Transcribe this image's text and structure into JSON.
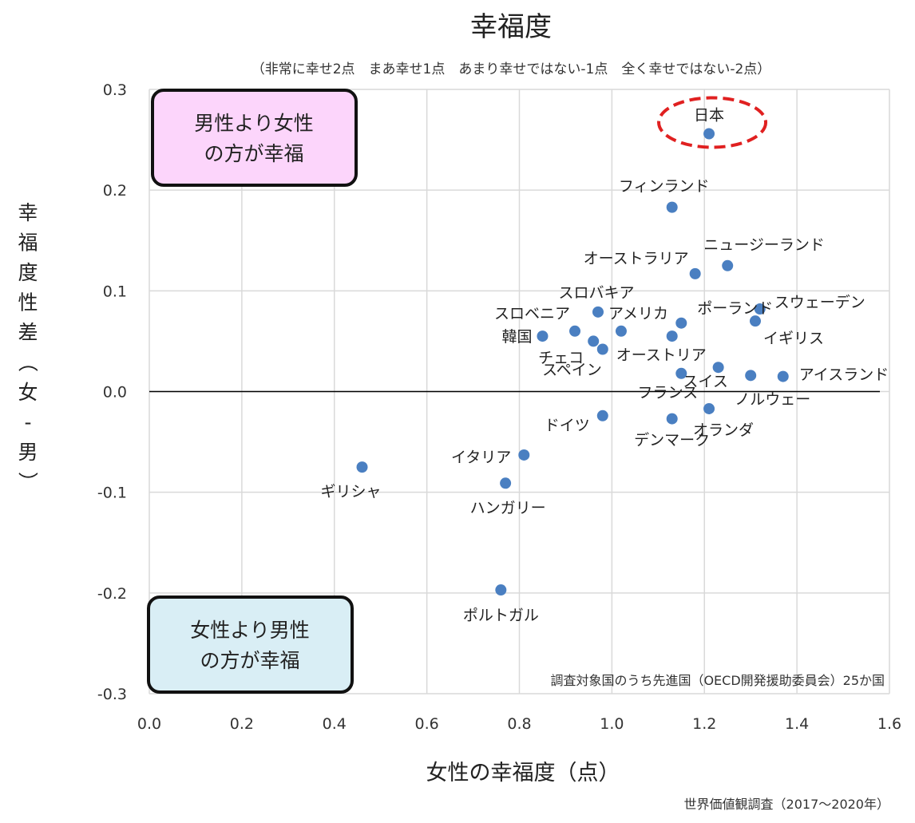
{
  "chart_data": {
    "type": "scatter",
    "title": "幸福度",
    "subtitle": "（非常に幸せ2点　まあ幸せ1点　あまり幸せではない-1点　全く幸せではない-2点）",
    "xlabel": "女性の幸福度（点）",
    "ylabel_chars": [
      "幸",
      "福",
      "度",
      "性",
      "差",
      "（",
      "女",
      "-",
      "男",
      "）"
    ],
    "xlim": [
      0.0,
      1.6
    ],
    "ylim": [
      -0.3,
      0.3
    ],
    "x_ticks": [
      "0.0",
      "0.2",
      "0.4",
      "0.6",
      "0.8",
      "1.0",
      "1.2",
      "1.4",
      "1.6"
    ],
    "y_ticks": [
      "0.3",
      "0.2",
      "0.1",
      "0.0",
      "-0.1",
      "-0.2",
      "-0.3"
    ],
    "grid": true,
    "marker_color": "#4a7fc1",
    "highlight_color": "#e02020",
    "points": [
      {
        "label": "日本",
        "x": 1.21,
        "y": 0.256,
        "highlight": true
      },
      {
        "label": "フィンランド",
        "x": 1.13,
        "y": 0.183
      },
      {
        "label": "ニュージーランド",
        "x": 1.25,
        "y": 0.125
      },
      {
        "label": "オーストラリア",
        "x": 1.18,
        "y": 0.117
      },
      {
        "label": "スウェーデン",
        "x": 1.32,
        "y": 0.082
      },
      {
        "label": "スロバキア",
        "x": 0.97,
        "y": 0.079
      },
      {
        "label": "イギリス",
        "x": 1.31,
        "y": 0.07
      },
      {
        "label": "ポーランド",
        "x": 1.15,
        "y": 0.068
      },
      {
        "label": "スロベニア",
        "x": 0.92,
        "y": 0.06
      },
      {
        "label": "アメリカ",
        "x": 1.02,
        "y": 0.06
      },
      {
        "label": "韓国",
        "x": 0.85,
        "y": 0.055
      },
      {
        "label": "オーストリア",
        "x": 1.13,
        "y": 0.055
      },
      {
        "label": "チェコ",
        "x": 0.96,
        "y": 0.05
      },
      {
        "label": "スペイン",
        "x": 0.98,
        "y": 0.042
      },
      {
        "label": "スイス",
        "x": 1.23,
        "y": 0.024
      },
      {
        "label": "フランス",
        "x": 1.15,
        "y": 0.018
      },
      {
        "label": "ノルウェー",
        "x": 1.3,
        "y": 0.016
      },
      {
        "label": "アイスランド",
        "x": 1.37,
        "y": 0.015
      },
      {
        "label": "オランダ",
        "x": 1.21,
        "y": -0.017
      },
      {
        "label": "ドイツ",
        "x": 0.98,
        "y": -0.024
      },
      {
        "label": "デンマーク",
        "x": 1.13,
        "y": -0.027
      },
      {
        "label": "イタリア",
        "x": 0.81,
        "y": -0.063
      },
      {
        "label": "ギリシャ",
        "x": 0.46,
        "y": -0.075
      },
      {
        "label": "ハンガリー",
        "x": 0.77,
        "y": -0.091
      },
      {
        "label": "ポルトガル",
        "x": 0.76,
        "y": -0.197
      }
    ],
    "annotations": {
      "box_top_line1": "男性より女性",
      "box_top_line2": "の方が幸福",
      "box_bottom_line1": "女性より男性",
      "box_bottom_line2": "の方が幸福",
      "note": "調査対象国のうち先進国（OECD開発援助委員会）25か国"
    },
    "box_top_color": "#fcd5fb",
    "box_bottom_color": "#d9eef5"
  },
  "source": "世界価値観調査（2017〜2020年）"
}
